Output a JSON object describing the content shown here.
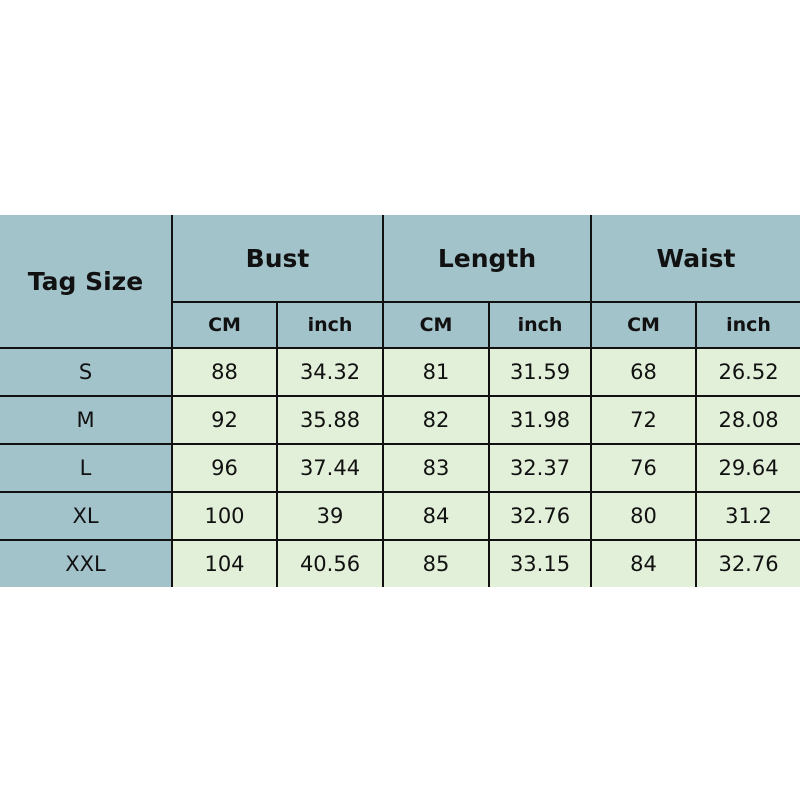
{
  "table": {
    "tag_size_label": "Tag Size",
    "groups": [
      "Bust",
      "Length",
      "Waist"
    ],
    "units": [
      "CM",
      "inch",
      "CM",
      "inch",
      "CM",
      "inch"
    ],
    "rows": [
      {
        "size": "S",
        "values": [
          "88",
          "34.32",
          "81",
          "31.59",
          "68",
          "26.52"
        ]
      },
      {
        "size": "M",
        "values": [
          "92",
          "35.88",
          "82",
          "31.98",
          "72",
          "28.08"
        ]
      },
      {
        "size": "L",
        "values": [
          "96",
          "37.44",
          "83",
          "32.37",
          "76",
          "29.64"
        ]
      },
      {
        "size": "XL",
        "values": [
          "100",
          "39",
          "84",
          "32.76",
          "80",
          "31.2"
        ]
      },
      {
        "size": "XXL",
        "values": [
          "104",
          "40.56",
          "85",
          "33.15",
          "84",
          "32.76"
        ]
      }
    ]
  },
  "colors": {
    "header_bg": "#a3c3cb",
    "cell_bg": "#e2efd9",
    "border": "#111111"
  }
}
